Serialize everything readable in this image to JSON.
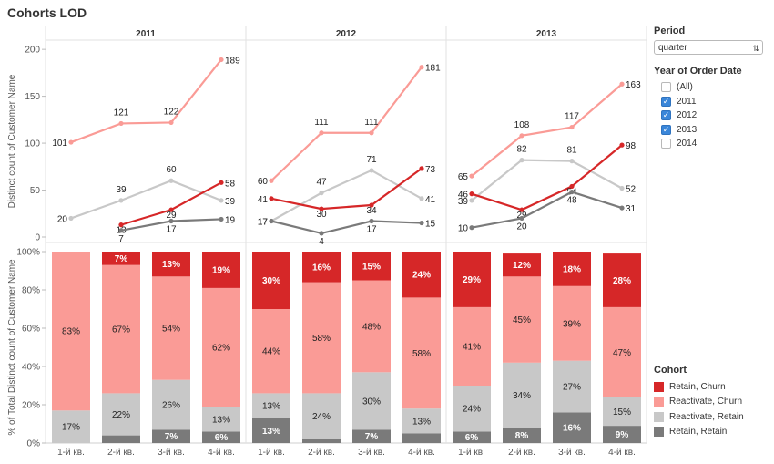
{
  "dashboard": {
    "title": "Cohorts LOD"
  },
  "filters": {
    "period_label": "Period",
    "period_value": "quarter",
    "year_label": "Year of Order Date",
    "year_items": [
      {
        "label": "(All)",
        "checked": false
      },
      {
        "label": "2011",
        "checked": true
      },
      {
        "label": "2012",
        "checked": true
      },
      {
        "label": "2013",
        "checked": true
      },
      {
        "label": "2014",
        "checked": false
      }
    ]
  },
  "legend": {
    "title": "Cohort",
    "items": [
      {
        "label": "Retain, Churn",
        "color": "#d62728"
      },
      {
        "label": "Reactivate, Churn",
        "color": "#fa9b96"
      },
      {
        "label": "Reactivate, Retain",
        "color": "#c8c8c8"
      },
      {
        "label": "Retain, Retain",
        "color": "#7a7a7a"
      }
    ]
  },
  "chart_data": [
    {
      "type": "line",
      "panels": [
        "2011",
        "2012",
        "2013"
      ],
      "categories": [
        "1-й кв.",
        "2-й кв.",
        "3-й кв.",
        "4-й кв."
      ],
      "ylabel": "Distinct count of Customer Name",
      "ylim": [
        0,
        205
      ],
      "yticks": [
        0,
        50,
        100,
        150,
        200
      ],
      "series": [
        {
          "name": "Reactivate, Churn",
          "color": "#fa9b96",
          "values": [
            [
              101,
              121,
              122,
              189
            ],
            [
              60,
              111,
              111,
              181
            ],
            [
              65,
              108,
              117,
              163
            ]
          ]
        },
        {
          "name": "Reactivate, Retain",
          "color": "#c8c8c8",
          "values": [
            [
              20,
              39,
              60,
              39
            ],
            [
              17,
              47,
              71,
              41
            ],
            [
              39,
              82,
              81,
              52
            ]
          ]
        },
        {
          "name": "Retain, Churn",
          "color": "#d62728",
          "values": [
            [
              null,
              13,
              29,
              58
            ],
            [
              41,
              30,
              34,
              73
            ],
            [
              46,
              29,
              54,
              98
            ]
          ]
        },
        {
          "name": "Retain, Retain",
          "color": "#7a7a7a",
          "values": [
            [
              null,
              7,
              17,
              19
            ],
            [
              17,
              4,
              17,
              15
            ],
            [
              10,
              20,
              48,
              31
            ]
          ]
        }
      ]
    },
    {
      "type": "bar",
      "stacked": true,
      "panels": [
        "2011",
        "2012",
        "2013"
      ],
      "categories": [
        "1-й кв.",
        "2-й кв.",
        "3-й кв.",
        "4-й кв."
      ],
      "ylabel": "% of Total Distinct count of Customer Name",
      "ylim": [
        0,
        100
      ],
      "yticks": [
        "0%",
        "20%",
        "40%",
        "60%",
        "80%",
        "100%"
      ],
      "series": [
        {
          "name": "Retain, Retain",
          "color": "#7a7a7a",
          "values": [
            [
              0,
              4,
              7,
              6
            ],
            [
              13,
              2,
              7,
              5
            ],
            [
              6,
              8,
              16,
              9
            ]
          ],
          "labels": [
            [
              "",
              "",
              "7%",
              "6%"
            ],
            [
              "13%",
              "",
              "7%",
              ""
            ],
            [
              "6%",
              "8%",
              "16%",
              "9%"
            ]
          ]
        },
        {
          "name": "Reactivate, Retain",
          "color": "#c8c8c8",
          "values": [
            [
              17,
              22,
              26,
              13
            ],
            [
              13,
              24,
              30,
              13
            ],
            [
              24,
              34,
              27,
              15
            ]
          ],
          "labels": [
            [
              "17%",
              "22%",
              "26%",
              "13%"
            ],
            [
              "13%",
              "24%",
              "30%",
              "13%"
            ],
            [
              "24%",
              "34%",
              "27%",
              "15%"
            ]
          ]
        },
        {
          "name": "Reactivate, Churn",
          "color": "#fa9b96",
          "values": [
            [
              83,
              67,
              54,
              62
            ],
            [
              44,
              58,
              48,
              58
            ],
            [
              41,
              45,
              39,
              47
            ]
          ],
          "labels": [
            [
              "83%",
              "67%",
              "54%",
              "62%"
            ],
            [
              "44%",
              "58%",
              "48%",
              "58%"
            ],
            [
              "41%",
              "45%",
              "39%",
              "47%"
            ]
          ]
        },
        {
          "name": "Retain, Churn",
          "color": "#d62728",
          "values": [
            [
              0,
              7,
              13,
              19
            ],
            [
              30,
              16,
              15,
              24
            ],
            [
              29,
              12,
              18,
              28
            ]
          ],
          "labels": [
            [
              "",
              "7%",
              "13%",
              "19%"
            ],
            [
              "30%",
              "16%",
              "15%",
              "24%"
            ],
            [
              "29%",
              "12%",
              "18%",
              "28%"
            ]
          ]
        }
      ]
    }
  ]
}
